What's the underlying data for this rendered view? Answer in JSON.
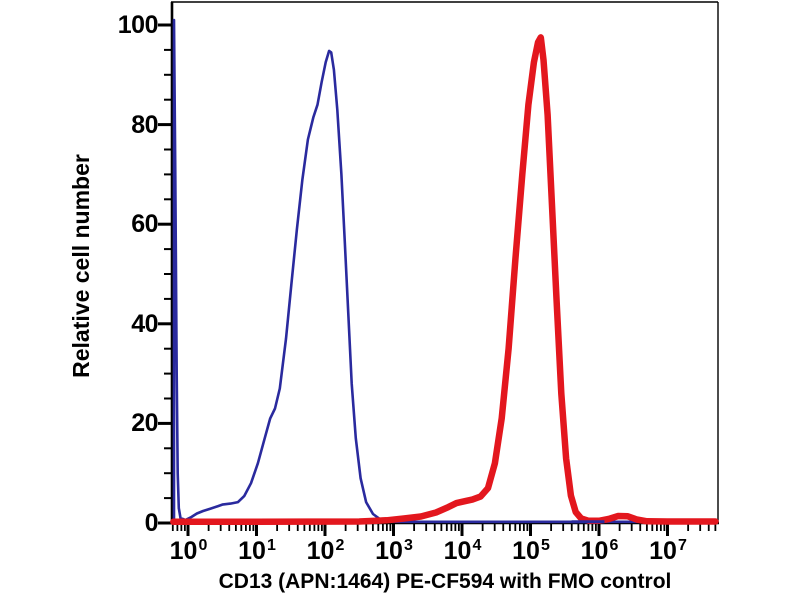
{
  "figure": {
    "background_color": "#ffffff",
    "frame_color": "#000000",
    "tick_color": "#000000",
    "text_color": "#000000"
  },
  "chart_data": {
    "type": "line",
    "subtype": "flow-cytometry-overlay-histogram",
    "title": "",
    "xlabel": "CD13 (APN:1464) PE-CF594 with FMO control",
    "ylabel": "Relative cell number",
    "x_scale": "log10",
    "x_tick_exponents": [
      0,
      1,
      2,
      3,
      4,
      5,
      6,
      7
    ],
    "x_tick_base": "10",
    "x_range_decades": [
      -0.23,
      7.72
    ],
    "y_ticks": [
      0,
      20,
      40,
      60,
      80,
      100
    ],
    "y_minor_step": 5,
    "ylim": [
      0,
      104.6
    ],
    "grid": false,
    "legend": "none",
    "series": [
      {
        "name": "FMO control",
        "color": "#2A2A9E",
        "stroke_width": 2.6,
        "points": [
          [
            -0.205,
            0
          ],
          [
            -0.205,
            101
          ],
          [
            -0.185,
            70
          ],
          [
            -0.165,
            30
          ],
          [
            -0.15,
            10
          ],
          [
            -0.135,
            3
          ],
          [
            -0.11,
            1.0
          ],
          [
            -0.04,
            0.6
          ],
          [
            0.05,
            1.2
          ],
          [
            0.13,
            1.9
          ],
          [
            0.22,
            2.4
          ],
          [
            0.33,
            2.9
          ],
          [
            0.44,
            3.4
          ],
          [
            0.5,
            3.7
          ],
          [
            0.62,
            3.9
          ],
          [
            0.73,
            4.2
          ],
          [
            0.82,
            5.4
          ],
          [
            0.92,
            8.0
          ],
          [
            1.02,
            12
          ],
          [
            1.12,
            17
          ],
          [
            1.2,
            21
          ],
          [
            1.27,
            23
          ],
          [
            1.34,
            27
          ],
          [
            1.43,
            37
          ],
          [
            1.51,
            48
          ],
          [
            1.59,
            59
          ],
          [
            1.67,
            69
          ],
          [
            1.75,
            77
          ],
          [
            1.83,
            81.5
          ],
          [
            1.89,
            84
          ],
          [
            1.95,
            88.5
          ],
          [
            2.01,
            92.5
          ],
          [
            2.06,
            94.8
          ],
          [
            2.09,
            94.5
          ],
          [
            2.13,
            91
          ],
          [
            2.18,
            83
          ],
          [
            2.24,
            70
          ],
          [
            2.29,
            56
          ],
          [
            2.34,
            42
          ],
          [
            2.39,
            28
          ],
          [
            2.45,
            17
          ],
          [
            2.52,
            9
          ],
          [
            2.6,
            4.2
          ],
          [
            2.7,
            1.8
          ],
          [
            2.8,
            0.8
          ],
          [
            2.92,
            0.35
          ],
          [
            3.1,
            0.25
          ],
          [
            7.7,
            0.25
          ]
        ]
      },
      {
        "name": "CD13 (APN:1464) PE-CF594",
        "color": "#E3171E",
        "stroke_width": 6.5,
        "points": [
          [
            -0.215,
            0.25
          ],
          [
            1.0,
            0.25
          ],
          [
            2.5,
            0.3
          ],
          [
            2.9,
            0.55
          ],
          [
            3.15,
            0.9
          ],
          [
            3.4,
            1.3
          ],
          [
            3.62,
            2.1
          ],
          [
            3.8,
            3.2
          ],
          [
            3.92,
            4.0
          ],
          [
            4.05,
            4.4
          ],
          [
            4.15,
            4.7
          ],
          [
            4.27,
            5.3
          ],
          [
            4.38,
            7
          ],
          [
            4.48,
            12
          ],
          [
            4.58,
            21
          ],
          [
            4.68,
            35
          ],
          [
            4.78,
            53
          ],
          [
            4.88,
            70
          ],
          [
            4.97,
            84
          ],
          [
            5.05,
            92.5
          ],
          [
            5.11,
            96.5
          ],
          [
            5.15,
            97.5
          ],
          [
            5.19,
            93
          ],
          [
            5.25,
            82
          ],
          [
            5.31,
            65
          ],
          [
            5.38,
            45
          ],
          [
            5.45,
            26
          ],
          [
            5.52,
            13
          ],
          [
            5.59,
            5.5
          ],
          [
            5.66,
            2.2
          ],
          [
            5.74,
            0.9
          ],
          [
            5.85,
            0.45
          ],
          [
            6.0,
            0.45
          ],
          [
            6.14,
            0.8
          ],
          [
            6.28,
            1.4
          ],
          [
            6.42,
            1.35
          ],
          [
            6.55,
            0.7
          ],
          [
            6.7,
            0.35
          ],
          [
            7.0,
            0.3
          ],
          [
            7.7,
            0.3
          ]
        ]
      }
    ],
    "baseline_overlay": {
      "description": "blue baseline visible over red between peaks",
      "color": "#2A2A9E",
      "stroke_width": 3,
      "decades": [
        5.6,
        6.08
      ],
      "value": 0.25
    }
  }
}
